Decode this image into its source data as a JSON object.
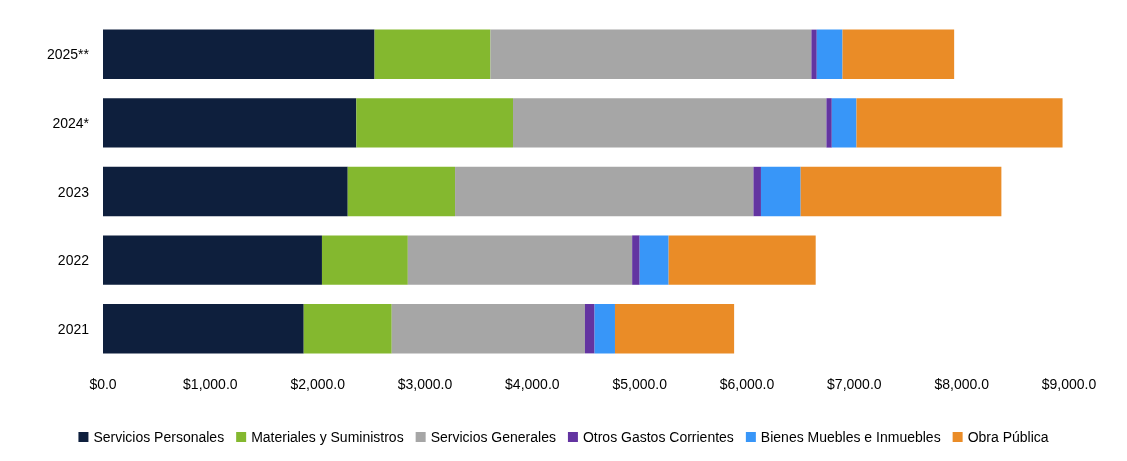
{
  "chart_data": {
    "type": "bar",
    "orientation": "horizontal",
    "stacked": true,
    "categories": [
      "2025**",
      "2024*",
      "2023",
      "2022",
      "2021"
    ],
    "series": [
      {
        "name": "Servicios Personales",
        "color": "#0e1f3d",
        "values": [
          2530,
          2360,
          2280,
          2040,
          1870
        ]
      },
      {
        "name": "Materiales y Suministros",
        "color": "#84b82f",
        "values": [
          1080,
          1460,
          1000,
          800,
          820
        ]
      },
      {
        "name": "Servicios Generales",
        "color": "#a6a6a6",
        "values": [
          2990,
          2920,
          2780,
          2090,
          1800
        ]
      },
      {
        "name": "Otros Gastos Corrientes",
        "color": "#6334a1",
        "values": [
          50,
          50,
          70,
          70,
          90
        ]
      },
      {
        "name": "Bienes Muebles e Inmuebles",
        "color": "#3896f8",
        "values": [
          240,
          230,
          370,
          270,
          190
        ]
      },
      {
        "name": "Obra Pública",
        "color": "#ea8c27",
        "values": [
          1040,
          1920,
          1870,
          1370,
          1110
        ]
      }
    ],
    "xlim": [
      0,
      9000
    ],
    "xticks": [
      {
        "value": 0,
        "label": "$0.0"
      },
      {
        "value": 1000,
        "label": "$1,000.0"
      },
      {
        "value": 2000,
        "label": "$2,000.0"
      },
      {
        "value": 3000,
        "label": "$3,000.0"
      },
      {
        "value": 4000,
        "label": "$4,000.0"
      },
      {
        "value": 5000,
        "label": "$5,000.0"
      },
      {
        "value": 6000,
        "label": "$6,000.0"
      },
      {
        "value": 7000,
        "label": "$7,000.0"
      },
      {
        "value": 8000,
        "label": "$8,000.0"
      },
      {
        "value": 9000,
        "label": "$9,000.0"
      }
    ],
    "grid": false,
    "legend": "bottom"
  }
}
